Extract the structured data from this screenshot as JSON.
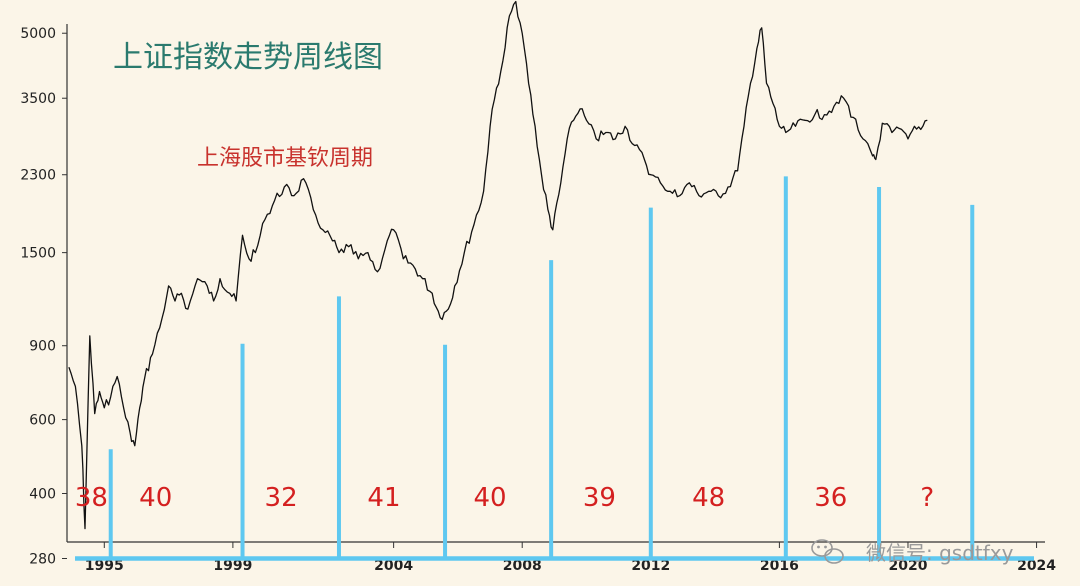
{
  "chart_data": {
    "type": "line",
    "title": "上证指数走势周线图",
    "subtitle": "上海股市基钦周期",
    "y_scale": "log",
    "ylim": [
      260,
      6000
    ],
    "xlim": [
      1993.0,
      2024.2
    ],
    "y_ticks": [
      280,
      400,
      600,
      900,
      1500,
      2300,
      3500,
      5000
    ],
    "x_ticks": [
      1995,
      1999,
      2004,
      2008,
      2012,
      2016,
      2020,
      2024
    ],
    "series": [
      {
        "x": [
          1993.9,
          1994.1,
          1994.3,
          1994.4,
          1994.55,
          1994.7,
          1994.85,
          1995.0,
          1995.2,
          1995.4,
          1995.6,
          1995.8,
          1995.95,
          1996.1,
          1996.25,
          1996.5,
          1996.8,
          1997.0,
          1997.2,
          1997.4,
          1997.6,
          1997.9,
          1998.2,
          1998.4,
          1998.6,
          1998.9,
          1999.1,
          1999.3,
          1999.5,
          1999.7,
          2000.0,
          2000.3,
          2000.6,
          2000.9,
          2001.2,
          2001.5,
          2001.8,
          2002.1,
          2002.3,
          2002.6,
          2002.9,
          2003.2,
          2003.5,
          2003.8,
          2004.0,
          2004.3,
          2004.6,
          2004.9,
          2005.2,
          2005.45,
          2005.7,
          2005.9,
          2006.2,
          2006.5,
          2006.8,
          2007.0,
          2007.2,
          2007.4,
          2007.6,
          2007.8,
          2008.0,
          2008.2,
          2008.4,
          2008.6,
          2008.8,
          2008.95,
          2009.2,
          2009.4,
          2009.6,
          2009.8,
          2010.0,
          2010.3,
          2010.6,
          2010.9,
          2011.2,
          2011.5,
          2011.8,
          2012.0,
          2012.3,
          2012.6,
          2012.9,
          2013.2,
          2013.5,
          2013.8,
          2014.1,
          2014.4,
          2014.7,
          2014.9,
          2015.1,
          2015.3,
          2015.45,
          2015.6,
          2015.8,
          2016.0,
          2016.2,
          2016.5,
          2016.8,
          2017.1,
          2017.4,
          2017.7,
          2018.0,
          2018.3,
          2018.6,
          2018.9,
          2019.0,
          2019.2,
          2019.5,
          2019.8,
          2020.0,
          2020.2,
          2020.4,
          2020.6
        ],
        "values": [
          800,
          720,
          520,
          330,
          950,
          620,
          700,
          640,
          680,
          760,
          640,
          560,
          520,
          640,
          750,
          860,
          1050,
          1250,
          1150,
          1200,
          1100,
          1300,
          1250,
          1150,
          1300,
          1200,
          1150,
          1650,
          1450,
          1500,
          1800,
          2000,
          2150,
          2050,
          2250,
          1900,
          1700,
          1600,
          1500,
          1550,
          1450,
          1500,
          1350,
          1600,
          1700,
          1450,
          1400,
          1300,
          1200,
          1050,
          1100,
          1250,
          1500,
          1750,
          2100,
          3000,
          3700,
          4300,
          5500,
          5950,
          5000,
          3800,
          3000,
          2300,
          1900,
          1700,
          2200,
          2800,
          3100,
          3300,
          3100,
          2800,
          2900,
          2800,
          3000,
          2700,
          2500,
          2300,
          2200,
          2100,
          2050,
          2200,
          2050,
          2100,
          2050,
          2150,
          2350,
          3000,
          3800,
          4600,
          5150,
          3800,
          3400,
          3000,
          2900,
          3000,
          3100,
          3200,
          3200,
          3350,
          3500,
          3150,
          2800,
          2550,
          2500,
          3050,
          2900,
          2950,
          2800,
          3000,
          2950,
          3100
        ]
      }
    ],
    "cycle_markers": {
      "years": [
        1995.2,
        1999.3,
        2002.3,
        2005.6,
        2008.9,
        2012.0,
        2016.2,
        2019.1,
        2022.0
      ],
      "heights": [
        510,
        910,
        1180,
        905,
        1440,
        1920,
        2280,
        2150,
        1950
      ],
      "baseline": 280
    },
    "cycle_labels": [
      {
        "text": "38",
        "x": 1994.6
      },
      {
        "text": "40",
        "x": 1996.6
      },
      {
        "text": "32",
        "x": 2000.5
      },
      {
        "text": "41",
        "x": 2003.7
      },
      {
        "text": "40",
        "x": 2007.0
      },
      {
        "text": "39",
        "x": 2010.4
      },
      {
        "text": "48",
        "x": 2013.8
      },
      {
        "text": "36",
        "x": 2017.6
      },
      {
        "text": "?",
        "x": 2020.6
      }
    ]
  },
  "colors": {
    "background": "#fbf5e8",
    "line": "#111111",
    "axis": "#333333",
    "title": "#2a7a6e",
    "subtitle": "#c8322d",
    "cycle_label": "#d42020",
    "marker": "#5ec8f0"
  },
  "watermark": {
    "text": "微信号: gsdtfxy",
    "icon": "wechat-icon"
  }
}
